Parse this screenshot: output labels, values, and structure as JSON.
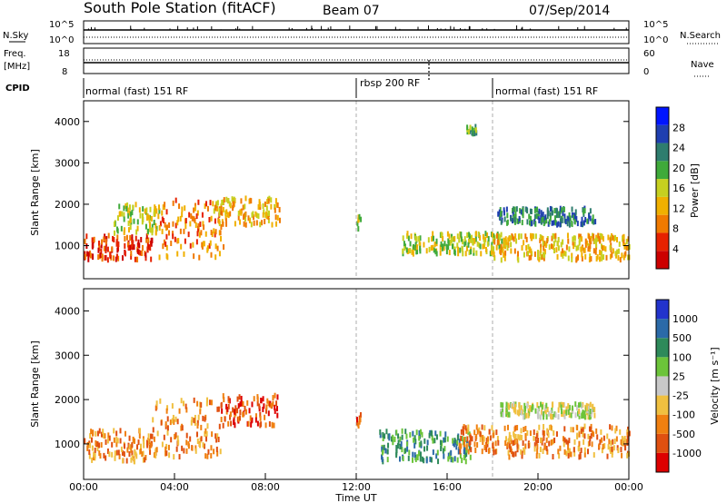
{
  "header": {
    "station": "South Pole Station (fitACF)",
    "beam": "Beam 07",
    "date": "07/Sep/2014"
  },
  "noise_panel": {
    "left_label": "N.Sky",
    "left_ticks": [
      "10^5",
      "10^0"
    ],
    "right_label": "N.Search",
    "right_ticks": [
      "10^5",
      "10^0"
    ]
  },
  "freq_panel": {
    "left_label_1": "Freq.",
    "left_label_2": "[MHz]",
    "left_ticks": [
      "18",
      "8"
    ],
    "right_label": "Nave",
    "right_ticks": [
      "60",
      "0"
    ]
  },
  "cpid": {
    "label": "CPID",
    "segments": [
      {
        "name": "normal (fast) 151 RF",
        "start_hour": 0,
        "end_hour": 12
      },
      {
        "name": "rbsp 200 RF",
        "start_hour": 12,
        "end_hour": 18
      },
      {
        "name": "normal (fast) 151 RF",
        "start_hour": 18,
        "end_hour": 24
      }
    ]
  },
  "x_axis": {
    "title": "Time UT",
    "ticks": [
      "00:00",
      "04:00",
      "08:00",
      "12:00",
      "16:00",
      "20:00",
      "00:00"
    ]
  },
  "power_panel": {
    "ylabel": "Slant Range [km]",
    "colorbar_title": "Power [dB]",
    "colorbar_ticks": [
      "28",
      "24",
      "20",
      "16",
      "12",
      "8",
      "4"
    ]
  },
  "velocity_panel": {
    "ylabel": "Slant Range [km]",
    "colorbar_title": "Velocity [m s⁻¹]",
    "colorbar_ticks": [
      "1000",
      "500",
      "100",
      "25",
      "-25",
      "-100",
      "-500",
      "-1000"
    ]
  },
  "chart_data": [
    {
      "type": "heatmap",
      "name": "power",
      "x_range_hours": [
        0,
        24
      ],
      "ylim": [
        200,
        4500
      ],
      "yticks": [
        1000,
        2000,
        3000,
        4000
      ],
      "colorscale": [
        "#0015ff",
        "#1f3fb0",
        "#2e7d6e",
        "#3faa3a",
        "#c6d020",
        "#f0b000",
        "#f07a00",
        "#e62200",
        "#cc0000"
      ],
      "colorbar_ticks": [
        28,
        24,
        20,
        16,
        12,
        8,
        4
      ],
      "features": [
        {
          "t0": 0.0,
          "t1": 3.0,
          "r0": 650,
          "r1": 1250,
          "level": 7
        },
        {
          "t0": 1.3,
          "t1": 3.3,
          "r0": 1300,
          "r1": 2000,
          "level": 4
        },
        {
          "t0": 3.3,
          "t1": 6.2,
          "r0": 700,
          "r1": 2100,
          "level": 6
        },
        {
          "t0": 5.7,
          "t1": 8.6,
          "r0": 1500,
          "r1": 2150,
          "level": 5
        },
        {
          "t0": 12.0,
          "t1": 12.2,
          "r0": 1400,
          "r1": 1700,
          "level": 4
        },
        {
          "t0": 14.0,
          "t1": 18.5,
          "r0": 800,
          "r1": 1300,
          "level": 4
        },
        {
          "t0": 16.8,
          "t1": 17.3,
          "r0": 3700,
          "r1": 3900,
          "level": 3
        },
        {
          "t0": 18.0,
          "t1": 24.0,
          "r0": 650,
          "r1": 1250,
          "level": 5
        },
        {
          "t0": 18.2,
          "t1": 22.5,
          "r0": 1500,
          "r1": 1900,
          "level": 2
        }
      ]
    },
    {
      "type": "heatmap",
      "name": "velocity",
      "x_range_hours": [
        0,
        24
      ],
      "ylim": [
        200,
        4500
      ],
      "yticks": [
        1000,
        2000,
        3000,
        4000
      ],
      "colorscale": [
        "#2233cc",
        "#2b6aa8",
        "#2e8a5a",
        "#6cc43a",
        "#c8c8c8",
        "#f0c040",
        "#f08010",
        "#e05010",
        "#dd0000"
      ],
      "colorbar_ticks": [
        1000,
        500,
        100,
        25,
        -25,
        -100,
        -500,
        -1000
      ],
      "features": [
        {
          "t0": 0.0,
          "t1": 3.0,
          "r0": 600,
          "r1": 1300,
          "level": 6
        },
        {
          "t0": 3.0,
          "t1": 6.0,
          "r0": 700,
          "r1": 2000,
          "level": 6
        },
        {
          "t0": 6.0,
          "t1": 8.5,
          "r0": 1400,
          "r1": 2100,
          "level": 7
        },
        {
          "t0": 12.0,
          "t1": 12.2,
          "r0": 1400,
          "r1": 1700,
          "level": 7
        },
        {
          "t0": 13.0,
          "t1": 17.0,
          "r0": 600,
          "r1": 1300,
          "level": 2
        },
        {
          "t0": 16.5,
          "t1": 18.3,
          "r0": 800,
          "r1": 1400,
          "level": 6
        },
        {
          "t0": 18.5,
          "t1": 24.0,
          "r0": 700,
          "r1": 1400,
          "level": 6
        },
        {
          "t0": 18.3,
          "t1": 22.5,
          "r0": 1600,
          "r1": 1900,
          "level": 4
        }
      ]
    }
  ]
}
